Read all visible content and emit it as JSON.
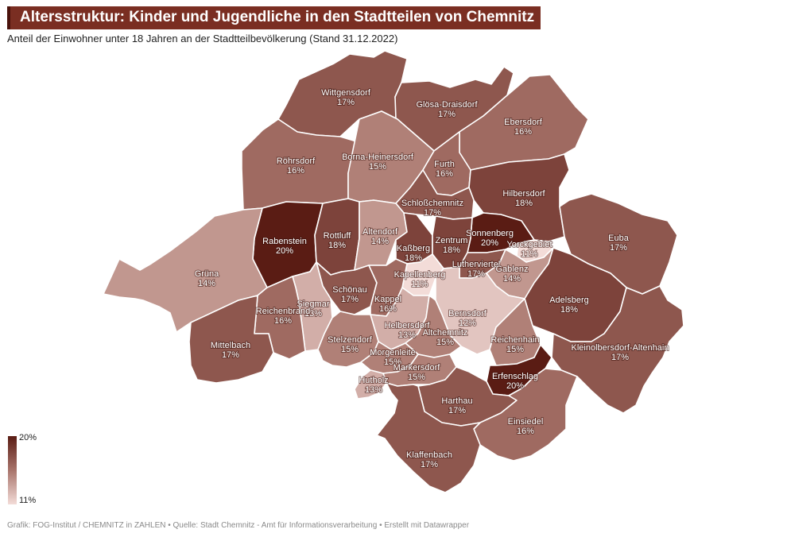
{
  "title": "Altersstruktur: Kinder und Jugendliche in den Stadtteilen von Chemnitz",
  "subtitle": "Anteil der Einwohner unter 18 Jahren an der Stadtteilbevölkerung (Stand 31.12.2022)",
  "legend": {
    "max": "20%",
    "min": "11%",
    "color_max": "#5a1c14",
    "color_min": "#f3dcd8"
  },
  "footer": "Grafik: FOG-Institut / CHEMNITZ in ZAHLEN • Quelle: Stadt Chemnitz - Amt für Informationsverarbeitung • Erstellt mit Datawrapper",
  "districts": [
    {
      "name": "Wittgensdorf",
      "value": "17%"
    },
    {
      "name": "Glösa-Draisdorf",
      "value": "17%"
    },
    {
      "name": "Ebersdorf",
      "value": "16%"
    },
    {
      "name": "Röhrsdorf",
      "value": "16%"
    },
    {
      "name": "Borna-Heinersdorf",
      "value": "15%"
    },
    {
      "name": "Furth",
      "value": "16%"
    },
    {
      "name": "Hilbersdorf",
      "value": "18%"
    },
    {
      "name": "Schloßchemnitz",
      "value": "17%"
    },
    {
      "name": "Rabenstein",
      "value": "20%"
    },
    {
      "name": "Rottluff",
      "value": "18%"
    },
    {
      "name": "Altendorf",
      "value": "14%"
    },
    {
      "name": "Sonnenberg",
      "value": "20%"
    },
    {
      "name": "Yorckgebiet",
      "value": "11%"
    },
    {
      "name": "Euba",
      "value": "17%"
    },
    {
      "name": "Kaßberg",
      "value": "18%"
    },
    {
      "name": "Zentrum",
      "value": "18%"
    },
    {
      "name": "Grüna",
      "value": "14%"
    },
    {
      "name": "Lutherviertel",
      "value": "17%"
    },
    {
      "name": "Gablenz",
      "value": "14%"
    },
    {
      "name": "Kapellenberg",
      "value": "11%"
    },
    {
      "name": "Schönau",
      "value": "17%"
    },
    {
      "name": "Kappel",
      "value": "16%"
    },
    {
      "name": "Siegmar",
      "value": "13%"
    },
    {
      "name": "Adelsberg",
      "value": "18%"
    },
    {
      "name": "Reichenbrand",
      "value": "16%"
    },
    {
      "name": "Bernsdorf",
      "value": "12%"
    },
    {
      "name": "Helbersdorf",
      "value": "13%"
    },
    {
      "name": "Altchemnitz",
      "value": "15%"
    },
    {
      "name": "Mittelbach",
      "value": "17%"
    },
    {
      "name": "Stelzendorf",
      "value": "15%"
    },
    {
      "name": "Reichenhain",
      "value": "15%"
    },
    {
      "name": "Kleinolbersdorf-Altenhain",
      "value": "17%"
    },
    {
      "name": "Morgenleite",
      "value": "15%"
    },
    {
      "name": "Markersdorf",
      "value": "15%"
    },
    {
      "name": "Erfenschlag",
      "value": "20%"
    },
    {
      "name": "Hutholz",
      "value": "13%"
    },
    {
      "name": "Harthau",
      "value": "17%"
    },
    {
      "name": "Einsiedel",
      "value": "16%"
    },
    {
      "name": "Klaffenbach",
      "value": "17%"
    }
  ]
}
